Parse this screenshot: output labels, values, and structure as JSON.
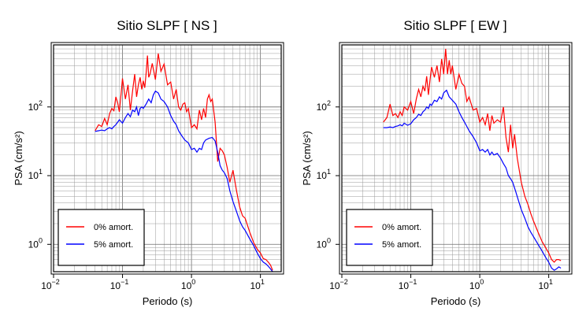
{
  "chart_data": [
    {
      "type": "line",
      "title": "Sitio SLPF [ NS ]",
      "xlabel": "Periodo (s)",
      "ylabel": "PSA (cm/s²)",
      "x_scale": "log",
      "y_scale": "log",
      "xlim": [
        0.01,
        20
      ],
      "ylim": [
        0.4,
        800
      ],
      "x_ticks": [
        {
          "label": "10",
          "exp": "−2"
        },
        {
          "label": "10",
          "exp": "−1"
        },
        {
          "label": "10",
          "exp": "0"
        },
        {
          "label": "10",
          "exp": "1"
        }
      ],
      "y_ticks": [
        {
          "label": "10",
          "exp": "0"
        },
        {
          "label": "10",
          "exp": "1"
        },
        {
          "label": "10",
          "exp": "2"
        }
      ],
      "grid": true,
      "legend_position": "bottom-left",
      "series": [
        {
          "name": "0% amort.",
          "color": "#ff0000",
          "x": [
            0.04,
            0.045,
            0.05,
            0.055,
            0.06,
            0.065,
            0.07,
            0.075,
            0.08,
            0.085,
            0.09,
            0.095,
            0.1,
            0.11,
            0.12,
            0.13,
            0.14,
            0.15,
            0.16,
            0.17,
            0.18,
            0.19,
            0.2,
            0.21,
            0.22,
            0.23,
            0.24,
            0.25,
            0.27,
            0.3,
            0.33,
            0.36,
            0.4,
            0.45,
            0.5,
            0.55,
            0.6,
            0.65,
            0.7,
            0.75,
            0.8,
            0.85,
            0.9,
            1.0,
            1.1,
            1.2,
            1.3,
            1.4,
            1.5,
            1.6,
            1.7,
            1.8,
            1.9,
            2.0,
            2.2,
            2.4,
            2.6,
            2.8,
            3.0,
            3.3,
            3.6,
            4.0,
            4.5,
            5.0,
            5.5,
            6.0,
            7.0,
            8.0,
            9.0,
            10.0,
            11.0,
            12.0,
            13.0,
            14.0,
            15.0
          ],
          "y": [
            45,
            55,
            52,
            68,
            55,
            80,
            95,
            88,
            140,
            115,
            85,
            150,
            260,
            130,
            210,
            90,
            170,
            300,
            140,
            210,
            270,
            180,
            240,
            190,
            310,
            560,
            270,
            300,
            430,
            250,
            600,
            330,
            420,
            210,
            230,
            130,
            180,
            100,
            90,
            110,
            115,
            85,
            95,
            50,
            55,
            48,
            90,
            65,
            95,
            70,
            130,
            150,
            120,
            130,
            60,
            16,
            25,
            23,
            20,
            13,
            8,
            12,
            6,
            3.5,
            2.6,
            2.4,
            1.5,
            1.05,
            0.85,
            0.75,
            0.62,
            0.6,
            0.55,
            0.5,
            0.42
          ]
        },
        {
          "name": "5% amort.",
          "color": "#0000ff",
          "x": [
            0.04,
            0.045,
            0.05,
            0.055,
            0.06,
            0.065,
            0.07,
            0.075,
            0.08,
            0.085,
            0.09,
            0.1,
            0.11,
            0.12,
            0.13,
            0.14,
            0.15,
            0.16,
            0.17,
            0.18,
            0.19,
            0.2,
            0.22,
            0.24,
            0.26,
            0.28,
            0.3,
            0.33,
            0.36,
            0.4,
            0.45,
            0.5,
            0.55,
            0.6,
            0.65,
            0.7,
            0.8,
            0.9,
            1.0,
            1.1,
            1.2,
            1.3,
            1.4,
            1.5,
            1.6,
            1.8,
            2.0,
            2.2,
            2.4,
            2.6,
            2.8,
            3.0,
            3.3,
            3.6,
            4.0,
            4.5,
            5.0,
            5.5,
            6.0,
            7.0,
            8.0,
            9.0,
            10.0,
            11.0,
            12.0,
            13.0,
            14.0,
            15.0
          ],
          "y": [
            44,
            45,
            46,
            45,
            48,
            50,
            48,
            52,
            55,
            60,
            65,
            58,
            70,
            80,
            72,
            90,
            85,
            100,
            75,
            95,
            100,
            95,
            110,
            130,
            115,
            150,
            170,
            160,
            130,
            120,
            100,
            75,
            62,
            55,
            45,
            40,
            33,
            30,
            24,
            25,
            22,
            25,
            24,
            30,
            33,
            35,
            36,
            32,
            22,
            14,
            12,
            11,
            9,
            6,
            4.2,
            3,
            2.2,
            1.8,
            1.6,
            1.2,
            0.95,
            0.75,
            0.62,
            0.55,
            0.52,
            0.48,
            0.44,
            0.4
          ]
        }
      ]
    },
    {
      "type": "line",
      "title": "Sitio SLPF [ EW ]",
      "xlabel": "Periodo (s)",
      "ylabel": "PSA (cm/s²)",
      "x_scale": "log",
      "y_scale": "log",
      "xlim": [
        0.01,
        20
      ],
      "ylim": [
        0.4,
        800
      ],
      "x_ticks": [
        {
          "label": "10",
          "exp": "−2"
        },
        {
          "label": "10",
          "exp": "−1"
        },
        {
          "label": "10",
          "exp": "0"
        },
        {
          "label": "10",
          "exp": "1"
        }
      ],
      "y_ticks": [
        {
          "label": "10",
          "exp": "0"
        },
        {
          "label": "10",
          "exp": "1"
        },
        {
          "label": "10",
          "exp": "2"
        }
      ],
      "grid": true,
      "legend_position": "bottom-left",
      "series": [
        {
          "name": "0% amort.",
          "color": "#ff0000",
          "x": [
            0.04,
            0.045,
            0.05,
            0.055,
            0.06,
            0.065,
            0.07,
            0.075,
            0.08,
            0.09,
            0.1,
            0.11,
            0.12,
            0.13,
            0.14,
            0.15,
            0.16,
            0.17,
            0.18,
            0.19,
            0.2,
            0.22,
            0.24,
            0.26,
            0.28,
            0.3,
            0.32,
            0.34,
            0.36,
            0.38,
            0.4,
            0.45,
            0.5,
            0.55,
            0.6,
            0.65,
            0.7,
            0.8,
            0.9,
            1.0,
            1.1,
            1.2,
            1.3,
            1.4,
            1.5,
            1.6,
            1.8,
            2.0,
            2.2,
            2.4,
            2.6,
            2.8,
            3.0,
            3.2,
            3.5,
            4.0,
            4.5,
            5.0,
            5.5,
            6.0,
            7.0,
            8.0,
            9.0,
            10.0,
            11.0,
            12.0,
            13.0,
            14.0,
            15.0
          ],
          "y": [
            60,
            70,
            110,
            75,
            80,
            70,
            85,
            75,
            100,
            90,
            120,
            80,
            130,
            180,
            140,
            200,
            170,
            280,
            150,
            250,
            380,
            270,
            400,
            230,
            500,
            300,
            700,
            300,
            480,
            300,
            400,
            180,
            300,
            220,
            200,
            120,
            140,
            90,
            95,
            60,
            70,
            55,
            80,
            45,
            75,
            58,
            65,
            60,
            100,
            36,
            22,
            55,
            25,
            40,
            18,
            8,
            5,
            3.8,
            2.8,
            2.2,
            1.5,
            1.1,
            0.9,
            0.75,
            0.6,
            0.55,
            0.6,
            0.6,
            0.58
          ]
        },
        {
          "name": "5% amort.",
          "color": "#0000ff",
          "x": [
            0.04,
            0.045,
            0.05,
            0.055,
            0.06,
            0.065,
            0.07,
            0.075,
            0.08,
            0.09,
            0.1,
            0.11,
            0.12,
            0.13,
            0.14,
            0.15,
            0.16,
            0.17,
            0.18,
            0.19,
            0.2,
            0.22,
            0.24,
            0.26,
            0.28,
            0.3,
            0.33,
            0.36,
            0.4,
            0.45,
            0.5,
            0.55,
            0.6,
            0.65,
            0.7,
            0.8,
            0.9,
            1.0,
            1.1,
            1.2,
            1.3,
            1.4,
            1.5,
            1.6,
            1.8,
            2.0,
            2.2,
            2.4,
            2.6,
            2.8,
            3.0,
            3.3,
            3.6,
            4.0,
            4.5,
            5.0,
            5.5,
            6.0,
            7.0,
            8.0,
            9.0,
            10.0,
            11.0,
            12.0,
            13.0,
            14.0,
            15.0
          ],
          "y": [
            50,
            50,
            51,
            50,
            52,
            53,
            55,
            53,
            58,
            54,
            57,
            65,
            70,
            78,
            75,
            85,
            90,
            100,
            95,
            110,
            105,
            125,
            120,
            140,
            130,
            160,
            175,
            140,
            125,
            110,
            85,
            70,
            60,
            52,
            45,
            37,
            30,
            23,
            24,
            22,
            24,
            20,
            22,
            20,
            21,
            18,
            15,
            13,
            10,
            9,
            8,
            6,
            4.5,
            3.2,
            2.4,
            1.8,
            1.5,
            1.3,
            1.0,
            0.8,
            0.65,
            0.55,
            0.45,
            0.42,
            0.44,
            0.47,
            0.45
          ]
        }
      ]
    }
  ]
}
